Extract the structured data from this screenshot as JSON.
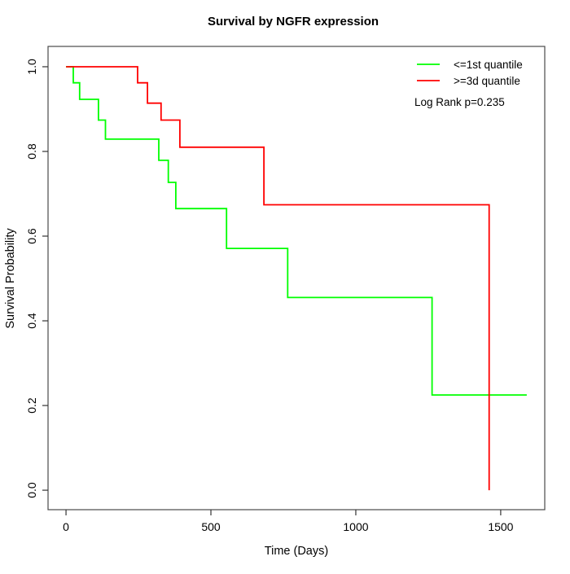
{
  "figure": {
    "title": "Survival by NGFR expression",
    "annotation": "Log Rank p=0.235"
  },
  "chart_data": {
    "type": "line",
    "subtype": "kaplan_meier_step",
    "title": "Survival by NGFR expression",
    "xlabel": "Time (Days)",
    "ylabel": "Survival Probability",
    "x_ticks": [
      0,
      500,
      1000,
      1500
    ],
    "y_ticks": [
      0.0,
      0.2,
      0.4,
      0.6,
      0.8,
      1.0
    ],
    "xlim": [
      -62,
      1652
    ],
    "ylim": [
      -0.046,
      1.048
    ],
    "grid": false,
    "legend_position": "top-right-inside",
    "annotation": "Log Rank p=0.235",
    "axis_color": "#333333",
    "series": [
      {
        "name": "<=1st quantile",
        "color": "#00ff00",
        "steps": [
          [
            0,
            1.0
          ],
          [
            25,
            0.962
          ],
          [
            47,
            0.923
          ],
          [
            112,
            0.874
          ],
          [
            136,
            0.829
          ],
          [
            320,
            0.779
          ],
          [
            353,
            0.727
          ],
          [
            379,
            0.665
          ],
          [
            554,
            0.571
          ],
          [
            765,
            0.455
          ],
          [
            1263,
            0.225
          ],
          [
            1590,
            0.225
          ]
        ]
      },
      {
        "name": ">=3d quantile",
        "color": "#ff0000",
        "steps": [
          [
            0,
            1.0
          ],
          [
            247,
            0.962
          ],
          [
            281,
            0.914
          ],
          [
            328,
            0.874
          ],
          [
            393,
            0.81
          ],
          [
            683,
            0.674
          ],
          [
            1460,
            0.0
          ]
        ]
      }
    ]
  }
}
